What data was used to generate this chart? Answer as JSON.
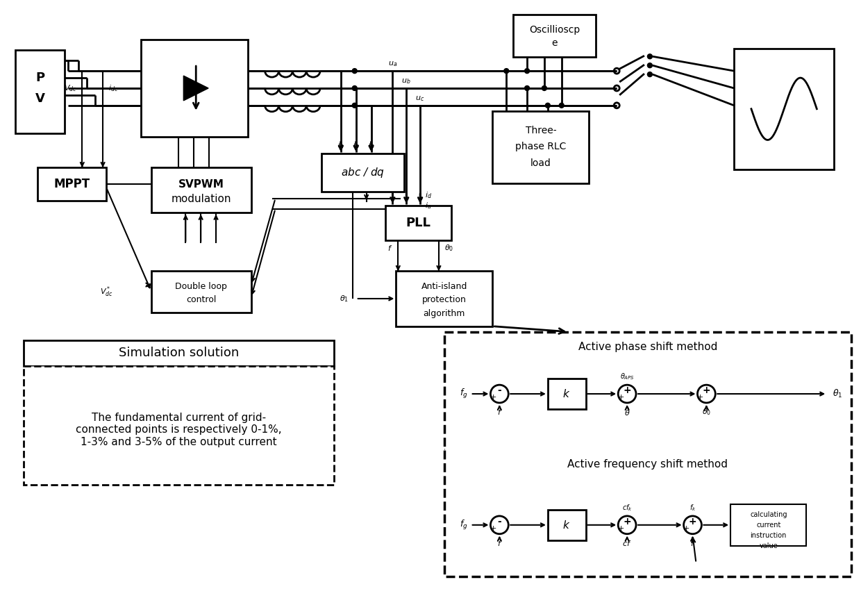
{
  "bg_color": "#ffffff",
  "sim_solution_text": "Simulation solution",
  "sim_body_text": "The fundamental current of grid-\nconnected points is respectively 0-1%,\n1-3% and 3-5% of the output current",
  "active_phase_label": "Active phase shift method",
  "active_freq_label": "Active frequency shift method",
  "pv_label": [
    "P",
    "V"
  ],
  "mppt_label": "MPPT",
  "svpwm_label": [
    "SVPWM",
    "modulation"
  ],
  "dlc_label": [
    "Double loop",
    "control"
  ],
  "abc_label": "abc / dq",
  "pll_label": "PLL",
  "ai_label": [
    "Anti-island",
    "protection",
    "algorithm"
  ],
  "osc_label": [
    "Oscillioscp",
    "e"
  ],
  "rlc_label": [
    "Three-",
    "phase RLC",
    "load"
  ]
}
